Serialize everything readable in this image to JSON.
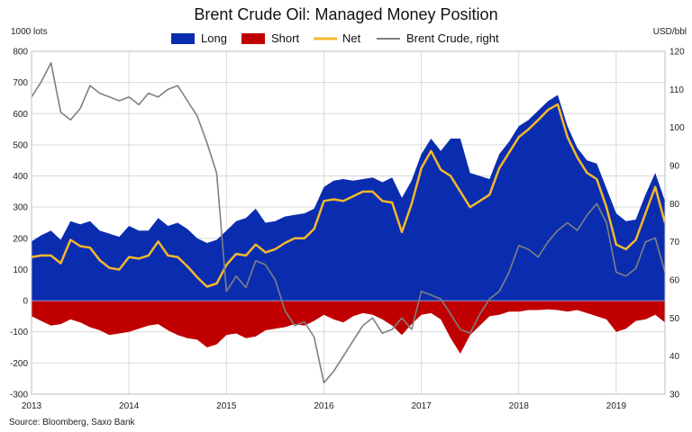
{
  "chart_data": {
    "type": "area",
    "title": "Brent Crude Oil: Managed Money Position",
    "left_unit": "1000 lots",
    "right_unit": "USD/bbl",
    "source": "Source: Bloomberg, Saxo Bank",
    "ylim": [
      -300,
      800
    ],
    "y_ticks": [
      800,
      700,
      600,
      500,
      400,
      300,
      200,
      100,
      0,
      -100,
      -200,
      -300
    ],
    "y2lim": [
      30,
      120
    ],
    "y2_ticks": [
      120,
      110,
      100,
      90,
      80,
      70,
      60,
      50,
      40,
      30
    ],
    "xlim": [
      2013,
      2019.5
    ],
    "x_ticks": [
      {
        "v": 2013,
        "label": "2013"
      },
      {
        "v": 2014,
        "label": "2014"
      },
      {
        "v": 2015,
        "label": "2015"
      },
      {
        "v": 2016,
        "label": "2016"
      },
      {
        "v": 2017,
        "label": "2017"
      },
      {
        "v": 2018,
        "label": "2018"
      },
      {
        "v": 2019,
        "label": "2019"
      }
    ],
    "grid": true,
    "legend": [
      {
        "name": "Long",
        "kind": "area",
        "color": "#0a2db0"
      },
      {
        "name": "Short",
        "kind": "area",
        "color": "#c00000"
      },
      {
        "name": "Net",
        "kind": "line",
        "color": "#f5b82a"
      },
      {
        "name": "Brent Crude, right",
        "kind": "line",
        "color": "#808080"
      }
    ],
    "x": [
      2013.0,
      2013.1,
      2013.2,
      2013.3,
      2013.4,
      2013.5,
      2013.6,
      2013.7,
      2013.8,
      2013.9,
      2014.0,
      2014.1,
      2014.2,
      2014.3,
      2014.4,
      2014.5,
      2014.6,
      2014.7,
      2014.8,
      2014.9,
      2015.0,
      2015.1,
      2015.2,
      2015.3,
      2015.4,
      2015.5,
      2015.6,
      2015.7,
      2015.8,
      2015.9,
      2016.0,
      2016.1,
      2016.2,
      2016.3,
      2016.4,
      2016.5,
      2016.6,
      2016.7,
      2016.8,
      2016.9,
      2017.0,
      2017.1,
      2017.2,
      2017.3,
      2017.4,
      2017.5,
      2017.6,
      2017.7,
      2017.8,
      2017.9,
      2018.0,
      2018.1,
      2018.2,
      2018.3,
      2018.4,
      2018.5,
      2018.6,
      2018.7,
      2018.8,
      2018.9,
      2019.0,
      2019.1,
      2019.2,
      2019.3,
      2019.4,
      2019.5
    ],
    "series": [
      {
        "name": "Long",
        "values": [
          190,
          210,
          225,
          195,
          255,
          245,
          255,
          225,
          215,
          205,
          240,
          225,
          225,
          265,
          240,
          250,
          230,
          200,
          185,
          195,
          225,
          255,
          265,
          295,
          250,
          255,
          270,
          275,
          280,
          295,
          365,
          385,
          390,
          385,
          390,
          395,
          380,
          395,
          330,
          385,
          470,
          520,
          480,
          520,
          520,
          410,
          400,
          390,
          470,
          510,
          560,
          580,
          610,
          640,
          660,
          560,
          490,
          450,
          440,
          360,
          280,
          255,
          260,
          340,
          410,
          320
        ]
      },
      {
        "name": "Short",
        "values": [
          -50,
          -65,
          -80,
          -75,
          -60,
          -70,
          -85,
          -95,
          -110,
          -105,
          -100,
          -90,
          -80,
          -75,
          -95,
          -110,
          -120,
          -125,
          -150,
          -140,
          -110,
          -105,
          -120,
          -115,
          -95,
          -90,
          -85,
          -75,
          -80,
          -65,
          -45,
          -60,
          -70,
          -50,
          -40,
          -45,
          -60,
          -80,
          -110,
          -75,
          -45,
          -40,
          -60,
          -120,
          -170,
          -110,
          -80,
          -50,
          -45,
          -35,
          -35,
          -30,
          -30,
          -28,
          -30,
          -35,
          -30,
          -40,
          -50,
          -60,
          -100,
          -90,
          -65,
          -60,
          -45,
          -70
        ]
      },
      {
        "name": "Net",
        "values": [
          140,
          145,
          145,
          120,
          195,
          175,
          170,
          130,
          105,
          100,
          140,
          135,
          145,
          190,
          145,
          140,
          110,
          75,
          45,
          55,
          115,
          150,
          145,
          180,
          155,
          165,
          185,
          200,
          200,
          230,
          320,
          325,
          320,
          335,
          350,
          350,
          320,
          315,
          220,
          310,
          425,
          480,
          420,
          400,
          350,
          300,
          320,
          340,
          425,
          475,
          525,
          550,
          580,
          612,
          630,
          525,
          460,
          410,
          390,
          300,
          180,
          165,
          195,
          280,
          365,
          250
        ]
      },
      {
        "name": "Brent Crude, right",
        "values": [
          108,
          112,
          117,
          104,
          102,
          105,
          111,
          109,
          108,
          107,
          108,
          106,
          109,
          108,
          110,
          111,
          107,
          103,
          96,
          88,
          57,
          61,
          58,
          65,
          64,
          60,
          52,
          48,
          49,
          45,
          33,
          36,
          40,
          44,
          48,
          50,
          46,
          47,
          50,
          47,
          57,
          56,
          55,
          51,
          47,
          46,
          51,
          55,
          57,
          62,
          69,
          68,
          66,
          70,
          73,
          75,
          73,
          77,
          80,
          75,
          62,
          61,
          63,
          70,
          71,
          62
        ]
      }
    ]
  }
}
